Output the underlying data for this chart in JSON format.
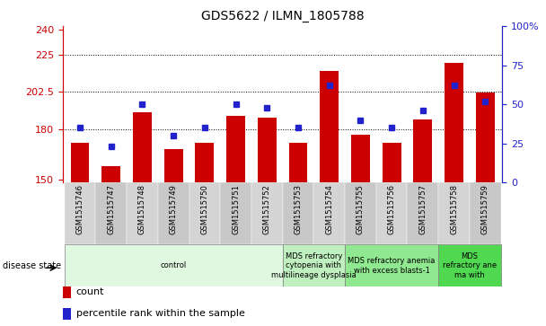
{
  "title": "GDS5622 / ILMN_1805788",
  "samples": [
    "GSM1515746",
    "GSM1515747",
    "GSM1515748",
    "GSM1515749",
    "GSM1515750",
    "GSM1515751",
    "GSM1515752",
    "GSM1515753",
    "GSM1515754",
    "GSM1515755",
    "GSM1515756",
    "GSM1515757",
    "GSM1515758",
    "GSM1515759"
  ],
  "counts": [
    172,
    158,
    190,
    168,
    172,
    188,
    187,
    172,
    215,
    177,
    172,
    186,
    220,
    202
  ],
  "percentile_ranks": [
    35,
    23,
    50,
    30,
    35,
    50,
    48,
    35,
    62,
    40,
    35,
    46,
    62,
    52
  ],
  "ylim_left": [
    148,
    242
  ],
  "ylim_right": [
    0,
    100
  ],
  "yticks_left": [
    150,
    180,
    202.5,
    225,
    240
  ],
  "ytick_labels_left": [
    "150",
    "180",
    "202.5",
    "225",
    "240"
  ],
  "yticks_right": [
    0,
    25,
    50,
    75,
    100
  ],
  "ytick_labels_right": [
    "0",
    "25",
    "50",
    "75",
    "100%"
  ],
  "bar_color": "#cc0000",
  "dot_color": "#2222cc",
  "disease_groups": [
    {
      "label": "control",
      "start": 0,
      "end": 7,
      "color": "#e0f8e0"
    },
    {
      "label": "MDS refractory\ncytopenia with\nmultilineage dysplasia",
      "start": 7,
      "end": 9,
      "color": "#c0f0c0"
    },
    {
      "label": "MDS refractory anemia\nwith excess blasts-1",
      "start": 9,
      "end": 12,
      "color": "#90e890"
    },
    {
      "label": "MDS\nrefractory ane\nma with",
      "start": 12,
      "end": 14,
      "color": "#50d850"
    }
  ],
  "legend_items": [
    {
      "label": "count",
      "color": "#cc0000"
    },
    {
      "label": "percentile rank within the sample",
      "color": "#2222cc"
    }
  ],
  "grid_lines": [
    180,
    202.5,
    225
  ],
  "bar_width": 0.6,
  "title_fontsize": 10,
  "tick_fontsize": 8,
  "xlabel_fontsize": 6,
  "ds_fontsize": 6,
  "legend_fontsize": 8
}
